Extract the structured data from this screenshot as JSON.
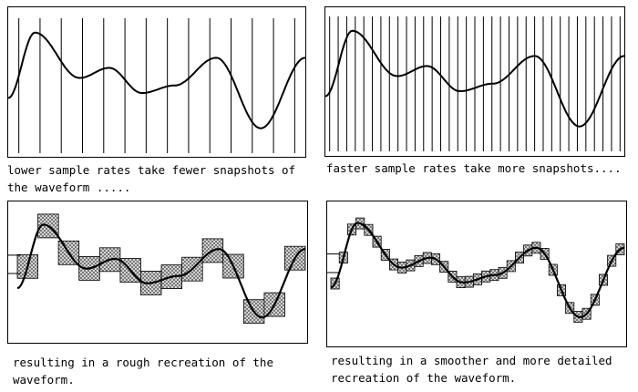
{
  "captions": {
    "top_left": "lower sample rates take fewer snapshots of the waveform .....",
    "top_right": "faster sample rates take more snapshots....",
    "bottom_left": "resulting in a rough recreation of the waveform.",
    "bottom_right": "resulting in a smoother and more detailed recreation of the waveform."
  },
  "sampling": {
    "low_rate_sample_lines": 14,
    "high_rate_sample_lines": 35
  },
  "colors": {
    "line": "#000000",
    "block_fill": "#bdbdbd",
    "background": "#ffffff"
  }
}
